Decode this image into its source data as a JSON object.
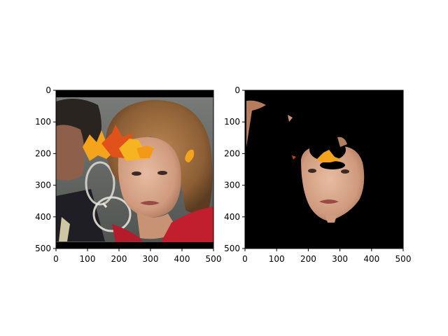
{
  "chart_data": [
    {
      "type": "image",
      "content": "photo of a woman's face with orange autumn leaves over the forehead; a man holding a glass at left",
      "xlim": [
        0,
        500
      ],
      "ylim": [
        500,
        0
      ],
      "xticks": [
        0,
        100,
        200,
        300,
        400,
        500
      ],
      "yticks": [
        0,
        100,
        200,
        300,
        400,
        500
      ],
      "xticklabels": [
        "0",
        "100",
        "200",
        "300",
        "400",
        "500"
      ],
      "yticklabels": [
        "0",
        "100",
        "200",
        "300",
        "400",
        "500"
      ]
    },
    {
      "type": "image",
      "content": "segmentation mask on black background showing only the woman's face skin region and leaf fragments",
      "xlim": [
        0,
        500
      ],
      "ylim": [
        500,
        0
      ],
      "xticks": [
        0,
        100,
        200,
        300,
        400,
        500
      ],
      "yticks": [
        0,
        100,
        200,
        300,
        400,
        500
      ],
      "xticklabels": [
        "0",
        "100",
        "200",
        "300",
        "400",
        "500"
      ],
      "yticklabels": [
        "0",
        "100",
        "200",
        "300",
        "400",
        "500"
      ]
    }
  ],
  "colors": {
    "hair": "#9a6a3a",
    "skin": "#d7a58a",
    "leaf_orange": "#f4a41c",
    "leaf_red": "#e0521a",
    "sweater": "#c21f2e",
    "mask_bg": "#000000"
  }
}
